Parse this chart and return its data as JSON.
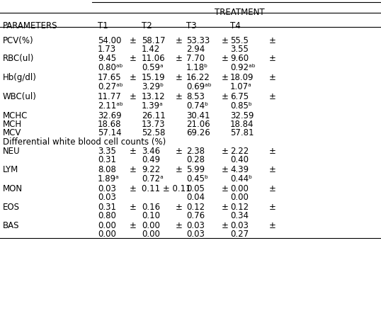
{
  "title": "TREATMENT",
  "headers": [
    "PARAMETERS",
    "T1",
    "",
    "T2",
    "",
    "T3",
    "",
    "T4",
    ""
  ],
  "col_header_row": [
    "PARAMETERS",
    "T1",
    "",
    "T2",
    "",
    "T3",
    "",
    "T4",
    ""
  ],
  "rows": [
    {
      "param": "PCV(%)",
      "line1": [
        "54.00",
        "±",
        "58.17",
        "±",
        "53.33",
        "±",
        "55.5",
        "±"
      ],
      "line2": [
        "1.73",
        "",
        "1.42",
        "",
        "2.94",
        "",
        "3.55",
        ""
      ]
    },
    {
      "param": "RBC(ul)",
      "line1": [
        "9.45",
        "±",
        "11.06",
        "±",
        "7.70",
        "±",
        "9.60",
        "±"
      ],
      "line2": [
        "0.80ᵃᵇ",
        "",
        "0.59ᵃ",
        "",
        "1.18ᵇ",
        "",
        "0.92ᵃᵇ",
        ""
      ]
    },
    {
      "param": "Hb(g/dl)",
      "line1": [
        "17.65",
        "±",
        "15.19",
        "±",
        "16.22",
        "±",
        "18.09",
        "±"
      ],
      "line2": [
        "0.27ᵃᵇ",
        "",
        "3.29ᵇ",
        "",
        "0.69ᵃᵇ",
        "",
        "1.07ᵃ",
        ""
      ]
    },
    {
      "param": "WBC(ul)",
      "line1": [
        "11.77",
        "±",
        "13.12",
        "±",
        "8.53",
        "±",
        "6.75",
        "±"
      ],
      "line2": [
        "2.11ᵃᵇ",
        "",
        "1.39ᵃ",
        "",
        "0.74ᵇ",
        "",
        "0.85ᵇ",
        ""
      ]
    },
    {
      "param": "MCHC",
      "line1": [
        "32.69",
        "",
        "26.11",
        "",
        "30.41",
        "",
        "32.59",
        ""
      ],
      "line2": null
    },
    {
      "param": "MCH",
      "line1": [
        "18.68",
        "",
        "13.73",
        "",
        "21.06",
        "",
        "18.84",
        ""
      ],
      "line2": null
    },
    {
      "param": "MCV",
      "line1": [
        "57.14",
        "",
        "52.58",
        "",
        "69.26",
        "",
        "57.81",
        ""
      ],
      "line2": null
    },
    {
      "param": "Differential white blood cell counts (%)",
      "line1": null,
      "line2": null,
      "section_header": true
    },
    {
      "param": "NEU",
      "line1": [
        "3.35",
        "±",
        "3.46",
        "±",
        "2.38",
        "±",
        "2.22",
        "±"
      ],
      "line2": [
        "0.31",
        "",
        "0.49",
        "",
        "0.28",
        "",
        "0.40",
        ""
      ]
    },
    {
      "param": "LYM",
      "line1": [
        "8.08",
        "±",
        "9.22",
        "±",
        "5.99",
        "±",
        "4.39",
        "±"
      ],
      "line2": [
        "1.89ᵃ",
        "",
        "0.72ᵃ",
        "",
        "0.45ᵇ",
        "",
        "0.44ᵇ",
        ""
      ]
    },
    {
      "param": "MON",
      "line1": [
        "0.03",
        "±",
        "0.11 ± 0.11",
        "",
        "0.05",
        "±",
        "0.00",
        "±"
      ],
      "line2": [
        "0.03",
        "",
        "",
        "",
        "0.04",
        "",
        "0.00",
        ""
      ],
      "mon_special": true
    },
    {
      "param": "EOS",
      "line1": [
        "0.31",
        "±",
        "0.16",
        "±",
        "0.12",
        "±",
        "0.12",
        "±"
      ],
      "line2": [
        "0.80",
        "",
        "0.10",
        "",
        "0.76",
        "",
        "0.34",
        ""
      ]
    },
    {
      "param": "BAS",
      "line1": [
        "0.00",
        "±",
        "0.00",
        "±",
        "0.03",
        "±",
        "0.03",
        "±"
      ],
      "line2": [
        "0.00",
        "",
        "0.00",
        "",
        "0.03",
        "",
        "0.27",
        ""
      ]
    }
  ],
  "bg_color": "#ffffff",
  "text_color": "#000000",
  "font_size": 8.5,
  "font_family": "DejaVu Sans"
}
